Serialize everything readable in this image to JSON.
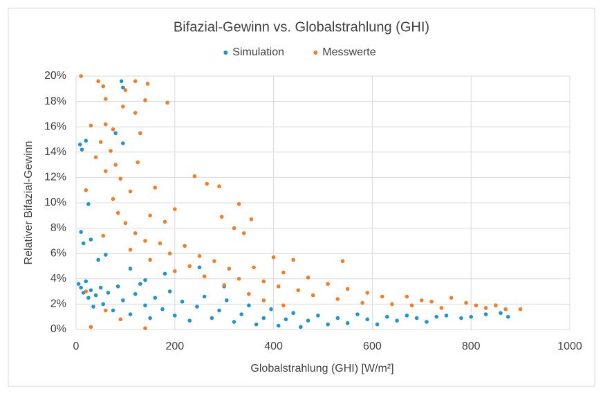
{
  "chart_data": {
    "type": "scatter",
    "title": "Bifazial-Gewinn vs. Globalstrahlung (GHI)",
    "x_label": "Globalstrahlung (GHI) [W/m²]",
    "y_label": "Relativer Bifazial-Gewinn",
    "xlim": [
      0,
      1000
    ],
    "xticks": [
      0,
      200,
      400,
      600,
      800,
      1000
    ],
    "ylim": [
      0,
      20
    ],
    "yticks": [
      {
        "value": 0,
        "label": "0%"
      },
      {
        "value": 2,
        "label": "2%"
      },
      {
        "value": 4,
        "label": "4%"
      },
      {
        "value": 6,
        "label": "6%"
      },
      {
        "value": 8,
        "label": "8%"
      },
      {
        "value": 10,
        "label": "10%"
      },
      {
        "value": 12,
        "label": "12%"
      },
      {
        "value": 14,
        "label": "14%"
      },
      {
        "value": 16,
        "label": "16%"
      },
      {
        "value": 18,
        "label": "18%"
      },
      {
        "value": 20,
        "label": "20%"
      }
    ],
    "grid": true,
    "legend": "top",
    "series": [
      {
        "name": "Simulation",
        "color": "#1f94cc",
        "x": [
          8,
          12,
          20,
          92,
          95,
          80,
          95,
          25,
          10,
          15,
          30,
          60,
          45,
          5,
          10,
          15,
          20,
          25,
          30,
          35,
          40,
          50,
          55,
          65,
          75,
          85,
          95,
          110,
          120,
          130,
          140,
          150,
          160,
          175,
          190,
          200,
          215,
          230,
          245,
          260,
          275,
          290,
          305,
          320,
          335,
          350,
          365,
          380,
          395,
          410,
          425,
          440,
          455,
          470,
          490,
          510,
          530,
          550,
          570,
          590,
          610,
          630,
          650,
          670,
          690,
          710,
          730,
          750,
          780,
          800,
          830,
          860,
          875,
          250,
          300,
          180,
          110,
          140
        ],
        "values": [
          14.6,
          14.2,
          14.9,
          19.6,
          19.1,
          15.5,
          14.7,
          9.9,
          7.7,
          6.8,
          7.1,
          5.9,
          5.5,
          3.6,
          3.3,
          2.9,
          3.8,
          2.5,
          3.1,
          1.8,
          2.7,
          3.3,
          2.0,
          2.9,
          1.5,
          3.4,
          2.3,
          1.2,
          2.8,
          3.6,
          1.9,
          0.9,
          2.5,
          1.6,
          3.0,
          1.1,
          2.2,
          0.7,
          1.8,
          2.6,
          0.9,
          1.5,
          2.3,
          0.6,
          1.2,
          1.9,
          0.4,
          0.9,
          1.6,
          0.3,
          0.8,
          1.3,
          0.2,
          0.7,
          1.1,
          0.4,
          0.9,
          0.5,
          1.2,
          0.8,
          0.4,
          1.0,
          0.7,
          1.1,
          0.9,
          0.6,
          1.0,
          1.1,
          0.9,
          1.0,
          1.2,
          1.3,
          1.0,
          4.9,
          3.4,
          4.4,
          4.8,
          3.9
        ]
      },
      {
        "name": "Messwerte",
        "color": "#f07d28",
        "x": [
          10,
          45,
          55,
          120,
          145,
          100,
          60,
          140,
          185,
          95,
          120,
          30,
          60,
          75,
          130,
          50,
          70,
          40,
          80,
          125,
          60,
          90,
          240,
          265,
          290,
          20,
          110,
          160,
          75,
          330,
          200,
          85,
          150,
          295,
          355,
          100,
          180,
          320,
          120,
          55,
          340,
          140,
          170,
          220,
          110,
          190,
          250,
          150,
          280,
          400,
          440,
          540,
          230,
          310,
          200,
          360,
          420,
          260,
          330,
          470,
          380,
          300,
          410,
          510,
          450,
          550,
          350,
          480,
          590,
          620,
          530,
          670,
          700,
          580,
          640,
          720,
          760,
          790,
          810,
          830,
          850,
          870,
          900,
          740,
          680,
          420,
          380,
          30,
          90,
          140,
          60,
          20
        ],
        "values": [
          20.0,
          19.6,
          19.2,
          19.6,
          19.4,
          18.9,
          18.2,
          18.1,
          17.9,
          17.6,
          17.1,
          16.1,
          16.2,
          15.8,
          15.5,
          14.8,
          14.1,
          13.6,
          13.0,
          13.2,
          12.5,
          11.9,
          12.1,
          11.5,
          11.3,
          11.0,
          10.9,
          11.2,
          10.3,
          9.9,
          9.5,
          9.2,
          9.0,
          8.9,
          8.7,
          8.4,
          8.5,
          8.0,
          7.6,
          7.4,
          7.6,
          7.0,
          6.8,
          6.6,
          6.3,
          6.0,
          5.8,
          5.5,
          5.4,
          5.7,
          5.5,
          5.4,
          5.0,
          4.8,
          4.6,
          4.9,
          4.5,
          4.2,
          4.0,
          4.1,
          3.8,
          3.5,
          3.4,
          3.6,
          3.1,
          3.2,
          2.8,
          2.7,
          2.9,
          2.6,
          2.4,
          2.6,
          2.3,
          2.1,
          2.0,
          2.2,
          2.5,
          2.1,
          1.9,
          1.7,
          1.9,
          1.6,
          1.6,
          1.7,
          1.9,
          1.9,
          2.3,
          0.2,
          0.8,
          0.1,
          1.5,
          3.0
        ]
      }
    ]
  }
}
